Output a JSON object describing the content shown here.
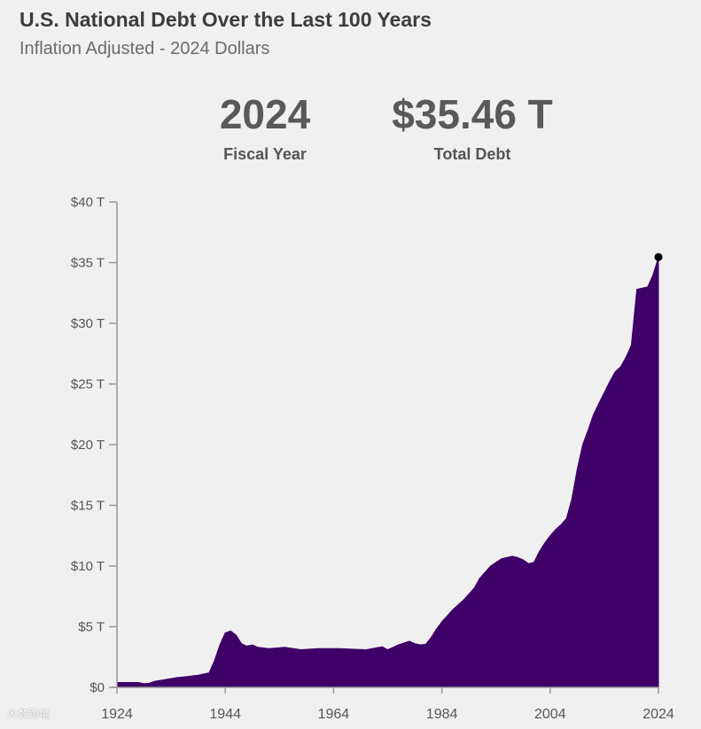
{
  "header": {
    "title": "U.S. National Debt Over the Last 100 Years",
    "subtitle": "Inflation Adjusted - 2024 Dollars"
  },
  "stats": {
    "year_value": "2024",
    "year_label": "Fiscal Year",
    "debt_value": "$35.46 T",
    "debt_label": "Total Debt"
  },
  "watermark": "大数跨境",
  "colors": {
    "area": "#3f0068",
    "axis": "#999999",
    "tick_text": "#555555",
    "marker": "#000000"
  },
  "chart_data": {
    "type": "area",
    "title": "U.S. National Debt Over the Last 100 Years",
    "subtitle": "Inflation Adjusted - 2024 Dollars",
    "xlabel": "",
    "ylabel": "",
    "xlim": [
      1924,
      2024
    ],
    "ylim": [
      0,
      40
    ],
    "unit": "trillions of 2024 dollars",
    "x_ticks": [
      1924,
      1944,
      1964,
      1984,
      2004,
      2024
    ],
    "y_ticks": [
      0,
      5,
      10,
      15,
      20,
      25,
      30,
      35,
      40
    ],
    "y_tick_labels": [
      "$0",
      "$5 T",
      "$10 T",
      "$15 T",
      "$20 T",
      "$25 T",
      "$30 T",
      "$35 T",
      "$40 T"
    ],
    "highlight": {
      "x": 2024,
      "y": 35.46
    },
    "series": [
      {
        "name": "Total Debt",
        "points": [
          [
            1924,
            0.4
          ],
          [
            1928,
            0.4
          ],
          [
            1929,
            0.3
          ],
          [
            1930,
            0.35
          ],
          [
            1931,
            0.5
          ],
          [
            1933,
            0.65
          ],
          [
            1935,
            0.8
          ],
          [
            1937,
            0.9
          ],
          [
            1939,
            1.0
          ],
          [
            1941,
            1.2
          ],
          [
            1942,
            2.2
          ],
          [
            1943,
            3.5
          ],
          [
            1944,
            4.5
          ],
          [
            1945,
            4.65
          ],
          [
            1946,
            4.3
          ],
          [
            1947,
            3.6
          ],
          [
            1948,
            3.4
          ],
          [
            1949,
            3.5
          ],
          [
            1950,
            3.3
          ],
          [
            1952,
            3.2
          ],
          [
            1955,
            3.3
          ],
          [
            1958,
            3.1
          ],
          [
            1961,
            3.2
          ],
          [
            1965,
            3.2
          ],
          [
            1970,
            3.1
          ],
          [
            1973,
            3.35
          ],
          [
            1974,
            3.1
          ],
          [
            1976,
            3.5
          ],
          [
            1978,
            3.8
          ],
          [
            1979,
            3.6
          ],
          [
            1980,
            3.5
          ],
          [
            1981,
            3.55
          ],
          [
            1982,
            4.1
          ],
          [
            1983,
            4.8
          ],
          [
            1984,
            5.4
          ],
          [
            1986,
            6.4
          ],
          [
            1988,
            7.2
          ],
          [
            1990,
            8.2
          ],
          [
            1991,
            9.0
          ],
          [
            1993,
            10.0
          ],
          [
            1995,
            10.6
          ],
          [
            1997,
            10.8
          ],
          [
            1998,
            10.7
          ],
          [
            1999,
            10.5
          ],
          [
            2000,
            10.2
          ],
          [
            2001,
            10.3
          ],
          [
            2002,
            11.2
          ],
          [
            2003,
            11.9
          ],
          [
            2004,
            12.5
          ],
          [
            2005,
            13.0
          ],
          [
            2006,
            13.4
          ],
          [
            2007,
            13.9
          ],
          [
            2008,
            15.5
          ],
          [
            2009,
            18.0
          ],
          [
            2010,
            20.0
          ],
          [
            2011,
            21.2
          ],
          [
            2012,
            22.5
          ],
          [
            2013,
            23.4
          ],
          [
            2014,
            24.3
          ],
          [
            2015,
            25.2
          ],
          [
            2016,
            26.0
          ],
          [
            2017,
            26.4
          ],
          [
            2018,
            27.2
          ],
          [
            2019,
            28.2
          ],
          [
            2020,
            32.8
          ],
          [
            2022,
            33.0
          ],
          [
            2023,
            34.0
          ],
          [
            2024,
            35.46
          ]
        ]
      }
    ]
  }
}
